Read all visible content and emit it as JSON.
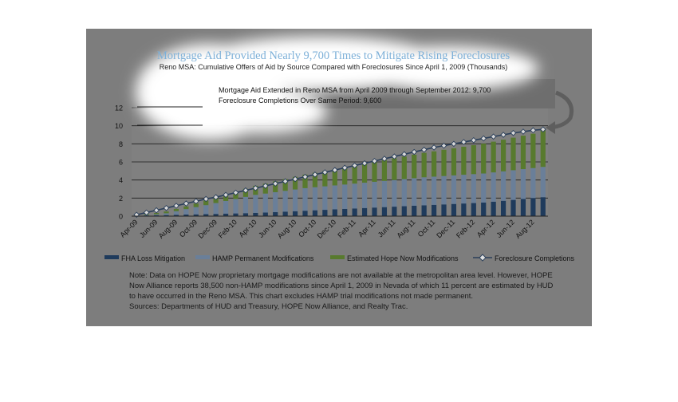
{
  "chart_data": {
    "type": "bar",
    "stacked": true,
    "title": "Mortgage Aid Provided Nearly 9,700 Times to Mitigate Rising Foreclosures",
    "subtitle": "Reno MSA: Cumulative Offers of Aid by Source Compared with Foreclosures Since April 1, 2009 (Thousands)",
    "annotation": {
      "line1": "Mortgage Aid Extended in Reno MSA from April 2009 through September 2012: 9,700",
      "line2": "Foreclosure Completions Over Same Period: 9,600"
    },
    "ylim": [
      0,
      12
    ],
    "y_ticks": [
      "0",
      "2",
      "4",
      "6",
      "8",
      "10",
      "12"
    ],
    "x_tick_labels": [
      "Apr-09",
      "Jun-09",
      "Aug-09",
      "Oct-09",
      "Dec-09",
      "Feb-10",
      "Apr-10",
      "Jun-10",
      "Aug-10",
      "Oct-10",
      "Dec-10",
      "Feb-11",
      "Apr-11",
      "Jun-11",
      "Aug-11",
      "Oct-11",
      "Dec-11",
      "Feb-12",
      "Apr-12",
      "Jun-12",
      "Aug-12"
    ],
    "categories": [
      "Apr-09",
      "May-09",
      "Jun-09",
      "Jul-09",
      "Aug-09",
      "Sep-09",
      "Oct-09",
      "Nov-09",
      "Dec-09",
      "Jan-10",
      "Feb-10",
      "Mar-10",
      "Apr-10",
      "May-10",
      "Jun-10",
      "Jul-10",
      "Aug-10",
      "Sep-10",
      "Oct-10",
      "Nov-10",
      "Dec-10",
      "Jan-11",
      "Feb-11",
      "Mar-11",
      "Apr-11",
      "May-11",
      "Jun-11",
      "Jul-11",
      "Aug-11",
      "Sep-11",
      "Oct-11",
      "Nov-11",
      "Dec-11",
      "Jan-12",
      "Feb-12",
      "Mar-12",
      "Apr-12",
      "May-12",
      "Jun-12",
      "Jul-12",
      "Aug-12",
      "Sep-12"
    ],
    "series": [
      {
        "name": "FHA Loss Mitigation",
        "kind": "bar",
        "color": "#1f3b5c",
        "values": [
          0.05,
          0.08,
          0.1,
          0.12,
          0.15,
          0.18,
          0.2,
          0.22,
          0.25,
          0.28,
          0.3,
          0.33,
          0.36,
          0.4,
          0.45,
          0.5,
          0.55,
          0.6,
          0.65,
          0.7,
          0.75,
          0.8,
          0.85,
          0.9,
          0.95,
          1.0,
          1.05,
          1.1,
          1.15,
          1.2,
          1.25,
          1.3,
          1.35,
          1.4,
          1.45,
          1.5,
          1.6,
          1.7,
          1.8,
          1.9,
          2.0,
          2.1
        ]
      },
      {
        "name": "HAMP Permanent Modifications",
        "kind": "bar",
        "color": "#6a7f99",
        "values": [
          0.02,
          0.05,
          0.1,
          0.2,
          0.4,
          0.6,
          0.8,
          1.0,
          1.2,
          1.4,
          1.6,
          1.8,
          2.0,
          2.1,
          2.2,
          2.3,
          2.4,
          2.5,
          2.55,
          2.6,
          2.65,
          2.7,
          2.75,
          2.8,
          2.85,
          2.9,
          2.95,
          3.0,
          3.05,
          3.1,
          3.12,
          3.14,
          3.16,
          3.18,
          3.2,
          3.22,
          3.24,
          3.26,
          3.28,
          3.3,
          3.32,
          3.35
        ]
      },
      {
        "name": "Estimated Hope Now Modifications",
        "kind": "bar",
        "color": "#587a2e",
        "values": [
          0.05,
          0.1,
          0.15,
          0.2,
          0.25,
          0.3,
          0.4,
          0.5,
          0.6,
          0.7,
          0.8,
          0.9,
          1.0,
          1.1,
          1.2,
          1.3,
          1.4,
          1.5,
          1.6,
          1.7,
          1.8,
          1.9,
          2.0,
          2.1,
          2.2,
          2.3,
          2.4,
          2.5,
          2.6,
          2.7,
          2.8,
          2.9,
          3.0,
          3.1,
          3.2,
          3.3,
          3.4,
          3.5,
          3.6,
          3.7,
          3.8,
          4.25
        ]
      },
      {
        "name": "Foreclosure Completions",
        "kind": "line",
        "color": "#2b3f5a",
        "values": [
          0.15,
          0.4,
          0.65,
          0.9,
          1.15,
          1.4,
          1.65,
          1.9,
          2.1,
          2.35,
          2.6,
          2.85,
          3.1,
          3.35,
          3.6,
          3.85,
          4.1,
          4.35,
          4.6,
          4.85,
          5.1,
          5.35,
          5.6,
          5.85,
          6.1,
          6.35,
          6.6,
          6.85,
          7.1,
          7.35,
          7.6,
          7.8,
          8.0,
          8.2,
          8.4,
          8.6,
          8.8,
          9.0,
          9.2,
          9.35,
          9.5,
          9.6
        ]
      }
    ],
    "legend_placement": "bottom",
    "grid": true
  },
  "notes": [
    "Note: Data on HOPE Now proprietary mortgage modifications are not available at the metropolitan area level. However, HOPE",
    "Now Alliance reports 38,500 non-HAMP modifications since April 1, 2009 in Nevada of which 11 percent are estimated by HUD",
    "to have occurred in the Reno MSA. This chart excludes HAMP trial modifications not made permanent.",
    "Sources: Departments of HUD and Treasury, HOPE Now Alliance, and Realty Trac."
  ]
}
